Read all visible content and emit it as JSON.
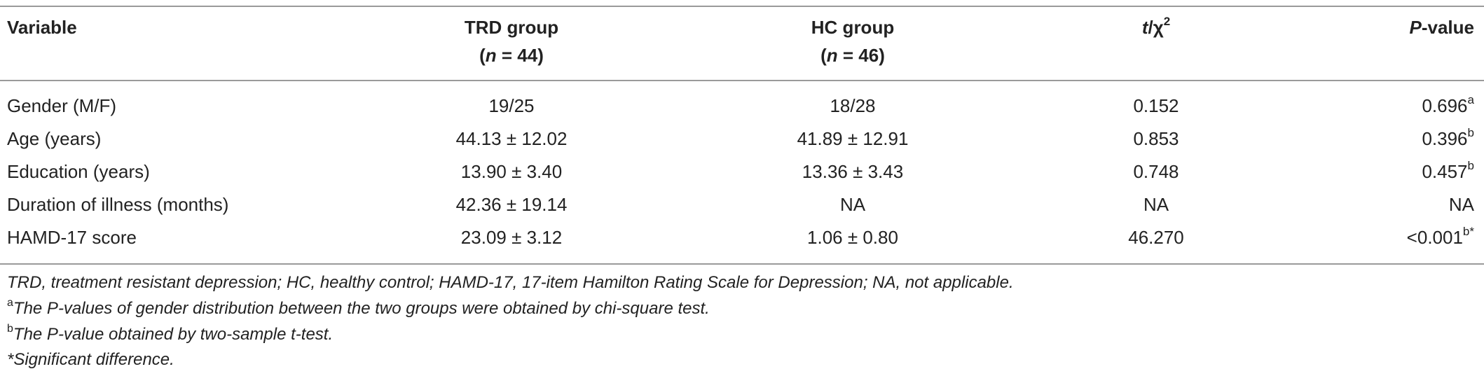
{
  "table": {
    "headers": {
      "variable": "Variable",
      "trd": "TRD group",
      "trd_n_label": "n",
      "trd_n_value": " = 44)",
      "hc": "HC group",
      "hc_n_label": "n",
      "hc_n_value": " = 46)",
      "stat_t": "t",
      "stat_rest": "/χ",
      "stat_sup": "2",
      "p_label": "P",
      "p_rest": "-value"
    },
    "rows": [
      {
        "variable": "Gender (M/F)",
        "trd": "19/25",
        "hc": "18/28",
        "stat": "0.152",
        "p": "0.696",
        "p_sup": "a"
      },
      {
        "variable": "Age (years)",
        "trd": "44.13 ± 12.02",
        "hc": "41.89 ± 12.91",
        "stat": "0.853",
        "p": "0.396",
        "p_sup": "b"
      },
      {
        "variable": "Education (years)",
        "trd": "13.90 ± 3.40",
        "hc": "13.36 ± 3.43",
        "stat": "0.748",
        "p": "0.457",
        "p_sup": "b"
      },
      {
        "variable": "Duration of illness (months)",
        "trd": "42.36 ± 19.14",
        "hc": "NA",
        "stat": "NA",
        "p": "NA",
        "p_sup": ""
      },
      {
        "variable": "HAMD-17 score",
        "trd": "23.09 ± 3.12",
        "hc": "1.06 ± 0.80",
        "stat": "46.270",
        "p": "<0.001",
        "p_sup": "b*"
      }
    ]
  },
  "notes": {
    "abbrev": "TRD, treatment resistant depression; HC, healthy control; HAMD-17, 17-item Hamilton Rating Scale for Depression; NA, not applicable.",
    "a_mark": "a",
    "a_text": "The P-values of gender distribution between the two groups were obtained by chi-square test.",
    "b_mark": "b",
    "b_text": "The P-value obtained by two-sample t-test.",
    "star": "*Significant difference."
  }
}
